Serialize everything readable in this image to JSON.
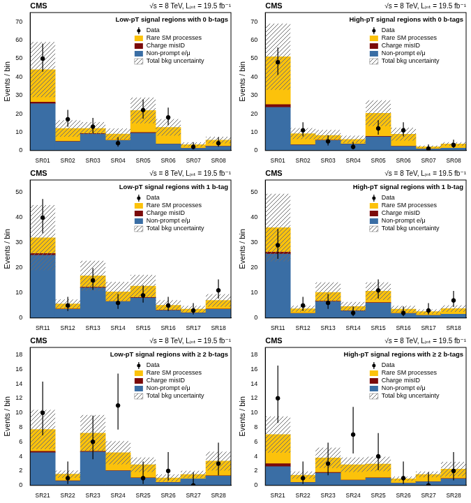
{
  "chart_data": [
    {
      "type": "bar",
      "stacked": true,
      "grid": false,
      "legend": "upper right",
      "title": "CMS",
      "subtitle": "√s = 8 TeV, Lᵢₙₜ = 19.5 fb⁻¹",
      "annotation": "Low-pT signal regions with 0 b-tags",
      "y_label": "Events / bin",
      "categories": [
        "SR01",
        "SR02",
        "SR03",
        "SR04",
        "SR05",
        "SR06",
        "SR07",
        "SR08"
      ],
      "series": [
        {
          "name": "Non-prompt e/μ",
          "color": "#3a6ea5",
          "values": [
            25.5,
            4.8,
            9,
            5.5,
            9.5,
            3.5,
            1.2,
            2.3
          ]
        },
        {
          "name": "Charge misID",
          "color": "#7b0a0a",
          "values": [
            0.8,
            0.2,
            0.3,
            0.1,
            0.3,
            0.1,
            0.05,
            0.1
          ]
        },
        {
          "name": "Rare SM processes",
          "color": "#fcc20b",
          "values": [
            17.7,
            7,
            2.7,
            3.4,
            12,
            9,
            2,
            3.3
          ]
        }
      ],
      "uncertainty": {
        "name": "Total bkg uncertainty",
        "values": [
          15,
          4.5,
          3.5,
          3,
          7,
          4.5,
          1.2,
          1.8
        ]
      },
      "data_points": {
        "name": "Data",
        "color": "#000000",
        "values": [
          50,
          17,
          13,
          4,
          22,
          18,
          2,
          4
        ],
        "error_low": [
          7.1,
          4.1,
          3.6,
          1.9,
          4.7,
          4.2,
          1.3,
          1.9
        ],
        "error_high": [
          8.1,
          5.1,
          4.7,
          3.2,
          5.8,
          5.3,
          2.6,
          3.2
        ]
      },
      "ylim": [
        0,
        75
      ],
      "yticks": [
        0,
        10,
        20,
        30,
        40,
        50,
        60,
        70
      ]
    },
    {
      "type": "bar",
      "stacked": true,
      "grid": false,
      "legend": "upper right",
      "title": "CMS",
      "subtitle": "√s = 8 TeV, Lᵢₙₜ = 19.5 fb⁻¹",
      "annotation": "High-pT signal regions with 0 b-tags",
      "y_label": "Events / bin",
      "categories": [
        "SR01",
        "SR02",
        "SR03",
        "SR04",
        "SR05",
        "SR06",
        "SR07",
        "SR08"
      ],
      "series": [
        {
          "name": "Non-prompt e/μ",
          "color": "#3a6ea5",
          "values": [
            23.5,
            3,
            5.5,
            3.5,
            7.5,
            2.3,
            0.8,
            1.3
          ]
        },
        {
          "name": "Charge misID",
          "color": "#7b0a0a",
          "values": [
            1.5,
            0.2,
            0.2,
            0.1,
            0.3,
            0.1,
            0.05,
            0.05
          ]
        },
        {
          "name": "Rare SM processes",
          "color": "#fcc20b",
          "values": [
            26,
            6,
            2.5,
            2.5,
            12.5,
            6.5,
            1.2,
            2.2
          ]
        }
      ],
      "uncertainty": {
        "name": "Total bkg uncertainty",
        "values": [
          18,
          3,
          3,
          2,
          7,
          3.5,
          0.7,
          1
        ]
      },
      "data_points": {
        "name": "Data",
        "color": "#000000",
        "values": [
          48,
          11,
          5,
          2,
          12,
          11,
          1,
          3
        ],
        "error_low": [
          6.9,
          3.3,
          2.2,
          1.3,
          3.4,
          3.3,
          0.8,
          1.6
        ],
        "error_high": [
          8.0,
          4.4,
          3.4,
          2.6,
          4.5,
          4.4,
          2.3,
          2.9
        ]
      },
      "ylim": [
        0,
        75
      ],
      "yticks": [
        0,
        10,
        20,
        30,
        40,
        50,
        60,
        70
      ]
    },
    {
      "type": "bar",
      "stacked": true,
      "grid": false,
      "legend": "upper right",
      "title": "CMS",
      "subtitle": "√s = 8 TeV, Lᵢₙₜ = 19.5 fb⁻¹",
      "annotation": "Low-pT signal regions with 1 b-tag",
      "y_label": "Events / bin",
      "categories": [
        "SR11",
        "SR12",
        "SR13",
        "SR14",
        "SR15",
        "SR16",
        "SR17",
        "SR18"
      ],
      "series": [
        {
          "name": "Non-prompt e/μ",
          "color": "#3a6ea5",
          "values": [
            25,
            3.5,
            12,
            6.5,
            8,
            3,
            2,
            3.5
          ]
        },
        {
          "name": "Charge misID",
          "color": "#7b0a0a",
          "values": [
            0.7,
            0.1,
            0.3,
            0.1,
            0.2,
            0.1,
            0.05,
            0.1
          ]
        },
        {
          "name": "Rare SM processes",
          "color": "#fcc20b",
          "values": [
            6.3,
            2,
            4.5,
            3.8,
            4.5,
            2,
            1.5,
            3.4
          ]
        }
      ],
      "uncertainty": {
        "name": "Total bkg uncertainty",
        "values": [
          13,
          1.8,
          6,
          4,
          4.5,
          2,
          1.3,
          2.5
        ]
      },
      "data_points": {
        "name": "Data",
        "color": "#000000",
        "values": [
          40,
          5,
          15,
          6,
          9,
          5,
          3,
          11
        ],
        "error_low": [
          6.3,
          2.2,
          3.8,
          2.4,
          2.9,
          2.2,
          1.6,
          3.3
        ],
        "error_high": [
          7.4,
          3.4,
          4.9,
          3.6,
          4.1,
          3.4,
          2.9,
          4.4
        ]
      },
      "ylim": [
        0,
        55
      ],
      "yticks": [
        0,
        10,
        20,
        30,
        40,
        50
      ]
    },
    {
      "type": "bar",
      "stacked": true,
      "grid": false,
      "legend": "upper right",
      "title": "CMS",
      "subtitle": "√s = 8 TeV, Lᵢₙₜ = 19.5 fb⁻¹",
      "annotation": "High-pT signal regions with 1 b-tag",
      "y_label": "Events / bin",
      "categories": [
        "SR11",
        "SR12",
        "SR13",
        "SR14",
        "SR15",
        "SR16",
        "SR17",
        "SR18"
      ],
      "series": [
        {
          "name": "Non-prompt e/μ",
          "color": "#3a6ea5",
          "values": [
            25.5,
            1.8,
            6.5,
            2.8,
            6,
            1.8,
            1,
            1.5
          ]
        },
        {
          "name": "Charge misID",
          "color": "#7b0a0a",
          "values": [
            0.8,
            0.1,
            0.2,
            0.1,
            0.2,
            0.05,
            0.05,
            0.05
          ]
        },
        {
          "name": "Rare SM processes",
          "color": "#fcc20b",
          "values": [
            9.7,
            1.8,
            3.5,
            1.7,
            4.5,
            1.7,
            1.5,
            2.2
          ]
        }
      ],
      "uncertainty": {
        "name": "Total bkg uncertainty",
        "values": [
          13.5,
          1.2,
          4,
          1.8,
          3.5,
          1.3,
          0.9,
          1.3
        ]
      },
      "data_points": {
        "name": "Data",
        "color": "#000000",
        "values": [
          29,
          5,
          6,
          2,
          11,
          2,
          3,
          7
        ],
        "error_low": [
          5.4,
          2.2,
          2.4,
          1.3,
          3.3,
          1.3,
          1.6,
          2.6
        ],
        "error_high": [
          6.5,
          3.4,
          3.6,
          2.6,
          4.4,
          2.6,
          2.9,
          3.8
        ]
      },
      "ylim": [
        0,
        55
      ],
      "yticks": [
        0,
        10,
        20,
        30,
        40,
        50
      ]
    },
    {
      "type": "bar",
      "stacked": true,
      "grid": false,
      "legend": "upper right",
      "title": "CMS",
      "subtitle": "√s = 8 TeV, Lᵢₙₜ = 19.5 fb⁻¹",
      "annotation": "Low-pT signal regions with ≥ 2 b-tags",
      "y_label": "Events / bin",
      "categories": [
        "SR21",
        "SR22",
        "SR23",
        "SR24",
        "SR25",
        "SR26",
        "SR27",
        "SR28"
      ],
      "series": [
        {
          "name": "Non-prompt e/μ",
          "color": "#3a6ea5",
          "values": [
            4.5,
            0.6,
            4.6,
            2,
            1,
            0.4,
            0.9,
            1.3
          ]
        },
        {
          "name": "Charge misID",
          "color": "#7b0a0a",
          "values": [
            0.2,
            0.05,
            0.1,
            0.05,
            0.05,
            0.02,
            0.02,
            0.05
          ]
        },
        {
          "name": "Rare SM processes",
          "color": "#fcc20b",
          "values": [
            3,
            0.9,
            2.5,
            2.45,
            1.8,
            0.6,
            0.6,
            2
          ]
        }
      ],
      "uncertainty": {
        "name": "Total bkg uncertainty",
        "values": [
          2.7,
          0.5,
          2.5,
          1.6,
          1,
          0.5,
          0.5,
          1.3
        ]
      },
      "data_points": {
        "name": "Data",
        "color": "#000000",
        "values": [
          10,
          1,
          6,
          11,
          1,
          2,
          0,
          3
        ],
        "error_low": [
          3.1,
          0.8,
          2.4,
          3.3,
          0.8,
          1.3,
          0,
          1.6
        ],
        "error_high": [
          4.3,
          2.3,
          3.6,
          4.4,
          2.3,
          2.6,
          1.8,
          2.9
        ]
      },
      "ylim": [
        0,
        19
      ],
      "yticks": [
        0,
        2,
        4,
        6,
        8,
        10,
        12,
        14,
        16,
        18
      ]
    },
    {
      "type": "bar",
      "stacked": true,
      "grid": false,
      "legend": "upper right",
      "title": "CMS",
      "subtitle": "√s = 8 TeV, Lᵢₙₜ = 19.5 fb⁻¹",
      "annotation": "High-pT signal regions with ≥ 2 b-tags",
      "y_label": "Events / bin",
      "categories": [
        "SR21",
        "SR22",
        "SR23",
        "SR24",
        "SR25",
        "SR26",
        "SR27",
        "SR28"
      ],
      "series": [
        {
          "name": "Non-prompt e/μ",
          "color": "#3a6ea5",
          "values": [
            2.6,
            0.4,
            1.7,
            0.7,
            1,
            0.3,
            0.5,
            0.9
          ]
        },
        {
          "name": "Charge misID",
          "color": "#7b0a0a",
          "values": [
            0.4,
            0.02,
            0.1,
            0.05,
            0.05,
            0.02,
            0.02,
            0.05
          ]
        },
        {
          "name": "Rare SM processes",
          "color": "#fcc20b",
          "values": [
            4,
            1,
            2,
            2.1,
            1.9,
            0.6,
            1,
            1.3
          ]
        }
      ],
      "uncertainty": {
        "name": "Total bkg uncertainty",
        "values": [
          2.5,
          0.5,
          1.4,
          1,
          1,
          0.3,
          0.4,
          1
        ]
      },
      "data_points": {
        "name": "Data",
        "color": "#000000",
        "values": [
          12,
          1,
          3,
          7,
          4,
          1,
          0,
          2
        ],
        "error_low": [
          3.4,
          0.8,
          1.6,
          2.6,
          1.9,
          0.8,
          0,
          1.3
        ],
        "error_high": [
          4.5,
          2.3,
          2.9,
          3.8,
          3.2,
          2.3,
          1.8,
          2.6
        ]
      },
      "ylim": [
        0,
        19
      ],
      "yticks": [
        0,
        2,
        4,
        6,
        8,
        10,
        12,
        14,
        16,
        18
      ]
    }
  ]
}
